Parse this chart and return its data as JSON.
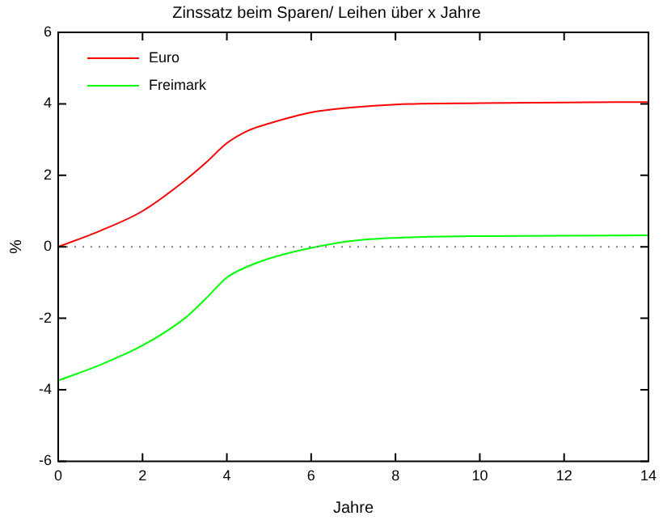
{
  "chart_data": {
    "type": "line",
    "title": "Zinssatz beim Sparen/ Leihen über x Jahre",
    "xlabel": "Jahre",
    "ylabel": "%",
    "xlim": [
      0,
      14
    ],
    "xticks": [
      0,
      2,
      4,
      6,
      8,
      10,
      12,
      14
    ],
    "ylim": [
      -6,
      6
    ],
    "yticks": [
      -6,
      -4,
      -2,
      0,
      2,
      4,
      6
    ],
    "series": [
      {
        "name": "Euro",
        "color": "#ff0000",
        "x": [
          0,
          1,
          2,
          3,
          3.5,
          4,
          4.5,
          5,
          6,
          7,
          8,
          10,
          12,
          14
        ],
        "values": [
          0,
          0.45,
          1.0,
          1.85,
          2.35,
          2.9,
          3.25,
          3.45,
          3.76,
          3.9,
          3.98,
          4.02,
          4.04,
          4.05
        ]
      },
      {
        "name": "Freimark",
        "color": "#00ff00",
        "x": [
          0,
          1,
          2,
          3,
          3.5,
          4,
          4.5,
          5,
          6,
          7,
          8,
          10,
          12,
          14
        ],
        "values": [
          -3.74,
          -3.3,
          -2.76,
          -2.0,
          -1.45,
          -0.86,
          -0.55,
          -0.33,
          -0.03,
          0.17,
          0.25,
          0.3,
          0.31,
          0.32
        ]
      }
    ],
    "ref_lines": [
      {
        "axis": "y",
        "value": 0,
        "color": "#808080",
        "line_style": "dotted"
      }
    ],
    "legend": "top left",
    "grid": false,
    "marker": "none",
    "line_style": "solid"
  }
}
